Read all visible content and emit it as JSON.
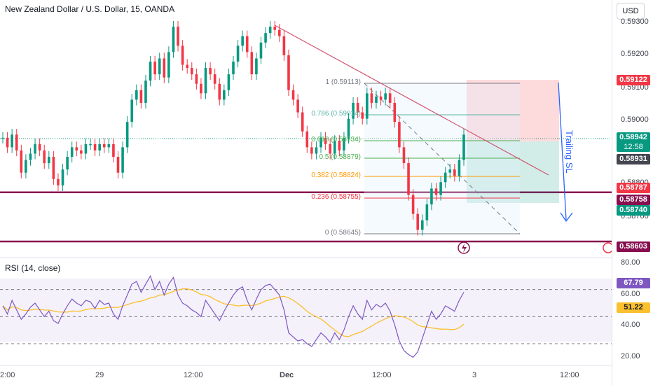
{
  "header": {
    "title": "New Zealand Dollar / U.S. Dollar, 15, OANDA",
    "currency": "USD"
  },
  "rsi": {
    "title": "RSI (14, close)",
    "ticks": [
      "80.00",
      "60.00",
      "40.00",
      "20.00"
    ],
    "value_label": "67.79",
    "ma_label": "51.22"
  },
  "annotations": {
    "trailing_sl": "Trailing SL"
  },
  "time_axis": [
    "2:00",
    "29",
    "12:00",
    "Dec",
    "12:00",
    "3",
    "12:00"
  ],
  "price_axis": {
    "ticks": [
      "0.59300",
      "0.59200",
      "0.59100",
      "0.59000",
      "0.58800",
      "0.58700"
    ],
    "labels": [
      {
        "text": "0.59122",
        "color": "#f23645"
      },
      {
        "text": "0.58942",
        "sub": "12:58",
        "color": "#089981"
      },
      {
        "text": "0.58931",
        "color": "#434651"
      },
      {
        "text": "0.58787",
        "color": "#f23645"
      },
      {
        "text": "0.58758",
        "color": "#880e4f"
      },
      {
        "text": "0.58740",
        "color": "#089981"
      },
      {
        "text": "0.58603",
        "color": "#880e4f"
      }
    ]
  },
  "fibonacci": [
    {
      "text": "1 (0.59113)",
      "color": "#787b86"
    },
    {
      "text": "0.786 (0.59014)",
      "color": "#5ab3a6"
    },
    {
      "text": "0.618 (0.58934)",
      "color": "#4caf50"
    },
    {
      "text": "0.5 (0.58879)",
      "color": "#4caf50"
    },
    {
      "text": "0.382 (0.58824)",
      "color": "#ff9800"
    },
    {
      "text": "0.236 (0.58755)",
      "color": "#f23645"
    },
    {
      "text": "0 (0.58645)",
      "color": "#787b86"
    }
  ],
  "colors": {
    "up": "#089981",
    "down": "#f23645",
    "trendline": "#d0546e",
    "support": "#880e4f",
    "rsi": "#7e57c2",
    "rsi_ma": "#fbc02d",
    "annotation": "#2962ff"
  },
  "chart_data": {
    "type": "candlestick",
    "symbol": "New Zealand Dollar / U.S. Dollar, 15, OANDA",
    "price_range": [
      0.5857,
      0.5932
    ],
    "candles_close": [
      0.5893,
      0.589,
      0.5894,
      0.5889,
      0.5882,
      0.5886,
      0.5888,
      0.5891,
      0.5889,
      0.5885,
      0.5887,
      0.588,
      0.5878,
      0.5883,
      0.5887,
      0.589,
      0.5889,
      0.5888,
      0.5891,
      0.5891,
      0.5889,
      0.5891,
      0.589,
      0.5891,
      0.5887,
      0.5882,
      0.589,
      0.5898,
      0.5905,
      0.5908,
      0.5904,
      0.5911,
      0.5917,
      0.5913,
      0.5918,
      0.5912,
      0.592,
      0.5928,
      0.5922,
      0.5916,
      0.5915,
      0.5913,
      0.591,
      0.5907,
      0.5915,
      0.5913,
      0.591,
      0.5905,
      0.5908,
      0.5913,
      0.5917,
      0.5922,
      0.5925,
      0.592,
      0.5913,
      0.5918,
      0.5923,
      0.5926,
      0.5928,
      0.5927,
      0.5925,
      0.5919,
      0.5908,
      0.5905,
      0.5901,
      0.5895,
      0.589,
      0.5888,
      0.589,
      0.5893,
      0.5891,
      0.5888,
      0.5892,
      0.5889,
      0.5893,
      0.5899,
      0.5904,
      0.5901,
      0.5899,
      0.5907,
      0.5904,
      0.5906,
      0.5905,
      0.5907,
      0.5904,
      0.5898,
      0.589,
      0.5885,
      0.5875,
      0.5869,
      0.5864,
      0.5867,
      0.5872,
      0.5877,
      0.5875,
      0.5879,
      0.5882,
      0.5883,
      0.5881,
      0.5886,
      0.5894
    ],
    "horizontal_levels": [
      0.58758,
      0.58603
    ],
    "rsi_range": [
      15,
      90
    ],
    "rsi_levels": [
      70,
      50,
      30
    ],
    "rsi_values": [
      58,
      52,
      62,
      55,
      48,
      52,
      57,
      60,
      55,
      50,
      54,
      47,
      45,
      52,
      58,
      63,
      60,
      58,
      62,
      61,
      56,
      62,
      59,
      60,
      52,
      48,
      58,
      66,
      74,
      76,
      68,
      74,
      80,
      70,
      76,
      66,
      74,
      79,
      66,
      60,
      58,
      55,
      53,
      50,
      62,
      57,
      52,
      47,
      54,
      60,
      66,
      70,
      72,
      62,
      55,
      63,
      70,
      73,
      74,
      70,
      66,
      55,
      38,
      35,
      32,
      33,
      30,
      28,
      33,
      38,
      35,
      31,
      38,
      33,
      40,
      50,
      58,
      52,
      48,
      62,
      55,
      59,
      57,
      60,
      54,
      44,
      32,
      25,
      22,
      20,
      24,
      34,
      44,
      54,
      48,
      52,
      58,
      56,
      54,
      62,
      68
    ],
    "rsi_current": 67.79,
    "rsi_ma_current": 51.22
  }
}
